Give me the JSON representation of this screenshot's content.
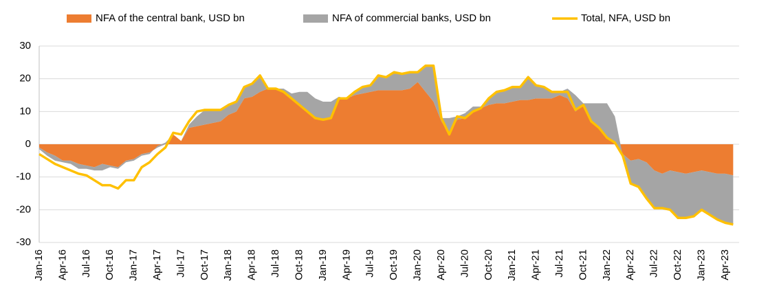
{
  "chart_data": {
    "type": "stacked-area-line",
    "categories": [
      "Jan-16",
      null,
      null,
      "Apr-16",
      null,
      null,
      "Jul-16",
      null,
      null,
      "Oct-16",
      null,
      null,
      "Jan-17",
      null,
      null,
      "Apr-17",
      null,
      null,
      "Jul-17",
      null,
      null,
      "Oct-17",
      null,
      null,
      "Jan-18",
      null,
      null,
      "Apr-18",
      null,
      null,
      "Jul-18",
      null,
      null,
      "Oct-18",
      null,
      null,
      "Jan-19",
      null,
      null,
      "Apr-19",
      null,
      null,
      "Jul-19",
      null,
      null,
      "Oct-19",
      null,
      null,
      "Jan-20",
      null,
      null,
      "Apr-20",
      null,
      null,
      "Jul-20",
      null,
      null,
      "Oct-20",
      null,
      null,
      "Jan-21",
      null,
      null,
      "Apr-21",
      null,
      null,
      "Jul-21",
      null,
      null,
      "Oct-21",
      null,
      null,
      "Jan-22",
      null,
      null,
      "Apr-22",
      null,
      null,
      "Jul-22",
      null,
      null,
      "Oct-22",
      null,
      null,
      "Jan-23",
      null,
      null,
      "Apr-23",
      null
    ],
    "series": [
      {
        "name": "NFA of the central bank, USD bn",
        "color": "#ed7d31",
        "kind": "area",
        "values": [
          -1,
          -2.5,
          -3.5,
          -5,
          -5,
          -6,
          -6.5,
          -7,
          -6,
          -6.5,
          -7,
          -5,
          -4.5,
          -3,
          -2.5,
          -1,
          0,
          3,
          1,
          5,
          5.5,
          6,
          6.5,
          7,
          9,
          10,
          14,
          14.5,
          16,
          17,
          17,
          16,
          14,
          12,
          10,
          8,
          7.5,
          8,
          14,
          14,
          15,
          15.5,
          16,
          16.5,
          16.5,
          16.5,
          16.5,
          17,
          19,
          16,
          13,
          7,
          3,
          7.5,
          8,
          10,
          11,
          12,
          12.5,
          12.5,
          13,
          13.5,
          13.5,
          14,
          14,
          14,
          15,
          14,
          10,
          12,
          7,
          5,
          2,
          0,
          -3,
          -5,
          -4.5,
          -5.5,
          -8,
          -9,
          -8,
          -8.5,
          -9,
          -8.5,
          -8,
          -8.5,
          -9,
          -9,
          -9.5
        ]
      },
      {
        "name": "NFA of commercial banks, USD bn",
        "color": "#a5a5a5",
        "kind": "area",
        "values": [
          -0.5,
          -1,
          -1.5,
          -0.5,
          -1,
          -1.5,
          -1,
          -1,
          -2,
          -0.5,
          -0.5,
          -0.5,
          -0.5,
          -0.5,
          -0.5,
          0.5,
          0.5,
          0,
          0,
          1,
          3,
          4.5,
          4,
          3.5,
          3,
          3,
          3.5,
          4,
          4.5,
          0,
          0,
          1,
          1.5,
          4,
          6,
          6,
          5.5,
          5,
          0.5,
          0,
          1,
          2,
          2,
          4.5,
          4,
          5.5,
          5,
          5,
          3,
          8,
          11,
          1,
          5,
          1,
          1.5,
          1.5,
          0.5,
          2,
          3.5,
          4,
          4.5,
          4,
          7,
          4,
          3.5,
          2,
          1,
          3,
          5,
          0.5,
          5.5,
          7.5,
          10.5,
          8.5,
          -0.5,
          -7,
          -8.5,
          -11,
          -11.5,
          -10.5,
          -12,
          -14,
          -13.5,
          -13.5,
          -12,
          -13,
          -14,
          -15,
          -15
        ]
      },
      {
        "name": "Total, NFA, USD bn",
        "color": "#ffc000",
        "kind": "line",
        "values": [
          -3,
          -4.5,
          -6,
          -7,
          -8,
          -9,
          -9.5,
          -11,
          -12.5,
          -12.5,
          -13.5,
          -11,
          -11,
          -7,
          -5.5,
          -3,
          -1,
          3.5,
          3,
          7,
          10,
          10.5,
          10.5,
          10.5,
          12,
          13,
          17.5,
          18.5,
          21,
          17,
          17,
          16,
          14,
          12,
          10,
          8,
          7.5,
          8,
          14,
          14,
          16,
          17.5,
          18,
          21,
          20.5,
          22,
          21.5,
          22,
          22,
          24,
          24,
          8,
          3,
          8.5,
          8,
          10,
          11,
          14,
          16,
          16.5,
          17.5,
          17.5,
          20.5,
          18,
          17.5,
          16,
          16,
          16,
          10.5,
          12,
          7,
          5,
          2,
          0.5,
          -3.5,
          -12,
          -13,
          -16.5,
          -19.5,
          -19.5,
          -20,
          -22.5,
          -22.5,
          -22,
          -20,
          -21.5,
          -23,
          -24,
          -24.5
        ]
      }
    ],
    "ylim": [
      -30,
      30
    ],
    "yticks": [
      -30,
      -20,
      -10,
      0,
      10,
      20,
      30
    ],
    "grid": true
  }
}
